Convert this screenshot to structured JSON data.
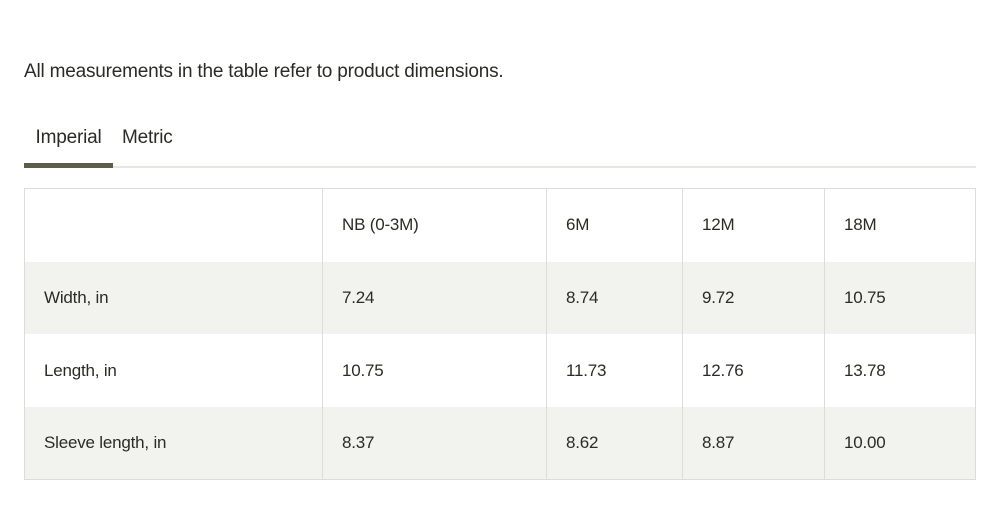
{
  "note": "All measurements in the table refer to product dimensions.",
  "tabs": [
    {
      "label": "Imperial",
      "active": true
    },
    {
      "label": "Metric",
      "active": false
    }
  ],
  "table": {
    "headers": [
      "",
      "NB (0-3M)",
      "6M",
      "12M",
      "18M"
    ],
    "rows": [
      {
        "label": "Width, in",
        "values": [
          "7.24",
          "8.74",
          "9.72",
          "10.75"
        ]
      },
      {
        "label": "Length, in",
        "values": [
          "10.75",
          "11.73",
          "12.76",
          "13.78"
        ]
      },
      {
        "label": "Sleeve length, in",
        "values": [
          "8.37",
          "8.62",
          "8.87",
          "10.00"
        ]
      }
    ]
  },
  "colors": {
    "text": "#2b2b26",
    "accent_underline": "#5c5d49",
    "row_shade": "#f2f3ee",
    "border": "#dcdcd8"
  }
}
